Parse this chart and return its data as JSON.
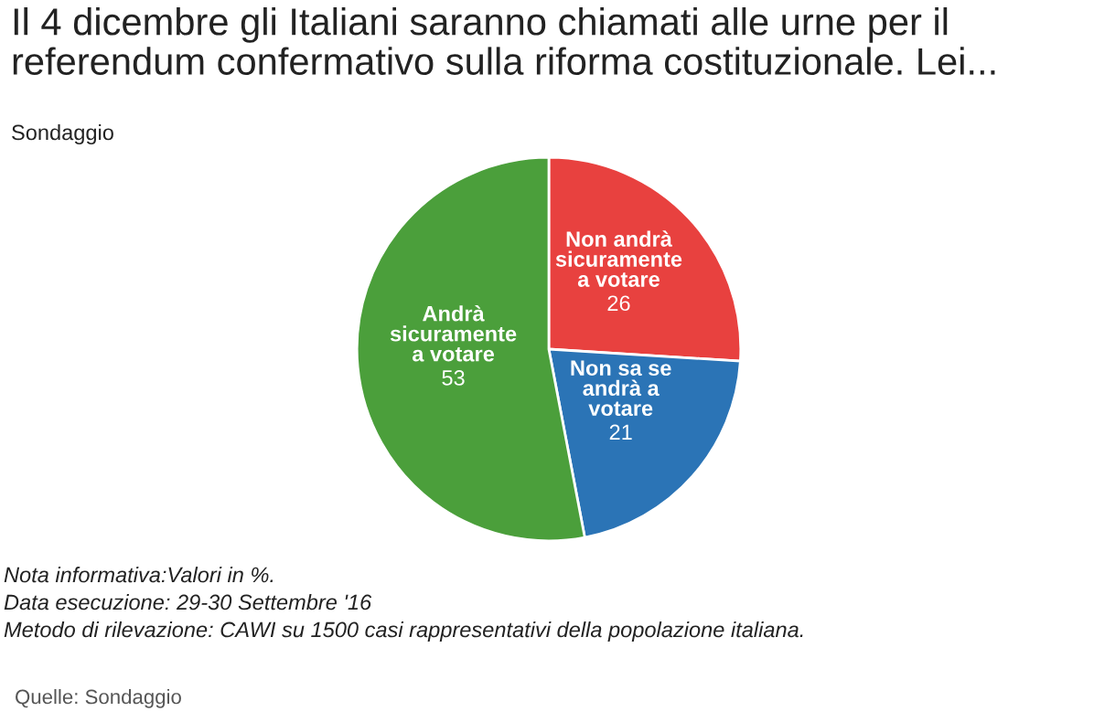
{
  "chart_data": {
    "type": "pie",
    "title": "Il 4 dicembre gli Italiani saranno chiamati alle urne per il\nreferendum confermativo sulla riforma costituzionale. Lei...",
    "subtitle": "Sondaggio",
    "categories": [
      "Non andrà\nsicuramente\na votare",
      "Non sa se\nandrà a\nvotare",
      "Andrà\nsicuramente\na votare"
    ],
    "values": [
      26,
      21,
      53
    ],
    "colors": [
      "#e8413f",
      "#2b74b6",
      "#4b9f3b"
    ],
    "data_labels": true,
    "annotations": [
      "Nota informativa:Valori in %.",
      "Data esecuzione: 29-30 Settembre '16",
      "Metodo di rilevazione: CAWI su 1500 casi rappresentativi della popolazione italiana.",
      "Quelle: Sondaggio"
    ]
  }
}
